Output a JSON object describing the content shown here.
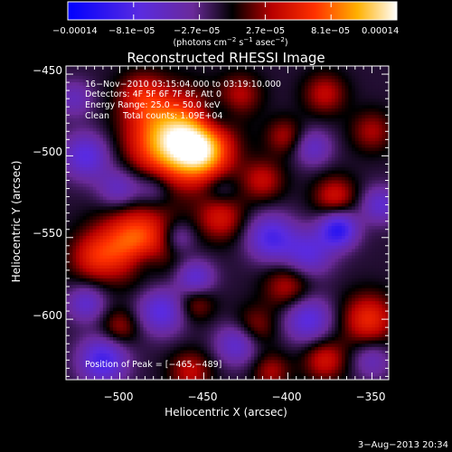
{
  "chart_data": {
    "type": "heatmap",
    "title": "Reconstructed RHESSI Image",
    "xlabel": "Heliocentric X (arcsec)",
    "ylabel": "Heliocentric Y (arcsec)",
    "xlim": [
      -532,
      -340
    ],
    "ylim": [
      -637,
      -445
    ],
    "x_ticks": [
      -500,
      -450,
      -400,
      -350
    ],
    "x_tick_labels": [
      "−500",
      "−450",
      "−400",
      "−350"
    ],
    "y_ticks": [
      -450,
      -500,
      -550,
      -600
    ],
    "y_tick_labels": [
      "−450",
      "−500",
      "−550",
      "−600"
    ],
    "colorbar": {
      "min": -0.00014,
      "max": 0.00014,
      "tick_labels": [
        "−0.00014",
        "−8.1e−05",
        "−2.7e−05",
        "2.7e−05",
        "8.1e−05",
        "0.00014"
      ],
      "unit_prefix": "(photons cm",
      "unit_sup1": "−2",
      "unit_mid": " s",
      "unit_sup2": "−1",
      "unit_mid2": " asec",
      "unit_sup3": "−2",
      "unit_suffix": ")",
      "colormap": "RHESSI blue-purple-black-red-yellow-white"
    },
    "annotations": {
      "time_range": "16−Nov−2010 03:15:04.000 to 03:19:10.000",
      "detectors": "Detectors: 4F 5F 6F 7F 8F, Att 0",
      "energy": "Energy Range: 25.0 − 50.0 keV",
      "method": "Clean     Total counts: 1.09E+04",
      "peak": "Position of Peak = [−465,−489]"
    },
    "peak": {
      "x": -465,
      "y": -489
    },
    "sources": [
      {
        "x": -468,
        "y": -490,
        "sigma": 18,
        "amp": 1.0
      },
      {
        "x": -450,
        "y": -498,
        "sigma": 12,
        "amp": 0.6
      },
      {
        "x": -487,
        "y": -463,
        "sigma": 10,
        "amp": 0.35
      },
      {
        "x": -490,
        "y": -552,
        "sigma": 15,
        "amp": 0.7
      },
      {
        "x": -515,
        "y": -562,
        "sigma": 11,
        "amp": 0.4
      },
      {
        "x": -440,
        "y": -538,
        "sigma": 10,
        "amp": 0.4
      },
      {
        "x": -415,
        "y": -515,
        "sigma": 9,
        "amp": 0.35
      },
      {
        "x": -402,
        "y": -488,
        "sigma": 8,
        "amp": 0.3
      },
      {
        "x": -428,
        "y": -462,
        "sigma": 9,
        "amp": 0.3
      },
      {
        "x": -378,
        "y": -462,
        "sigma": 9,
        "amp": 0.35
      },
      {
        "x": -350,
        "y": -485,
        "sigma": 9,
        "amp": 0.3
      },
      {
        "x": -372,
        "y": -525,
        "sigma": 9,
        "amp": 0.4
      },
      {
        "x": -352,
        "y": -600,
        "sigma": 11,
        "amp": 0.5
      },
      {
        "x": -378,
        "y": -625,
        "sigma": 9,
        "amp": 0.4
      },
      {
        "x": -400,
        "y": -580,
        "sigma": 10,
        "amp": 0.35
      },
      {
        "x": -420,
        "y": -605,
        "sigma": 9,
        "amp": 0.3
      },
      {
        "x": -455,
        "y": -590,
        "sigma": 8,
        "amp": 0.3
      },
      {
        "x": -500,
        "y": -605,
        "sigma": 8,
        "amp": 0.3
      },
      {
        "x": -410,
        "y": -632,
        "sigma": 8,
        "amp": 0.3
      },
      {
        "x": -458,
        "y": -632,
        "sigma": 9,
        "amp": 0.35
      },
      {
        "x": -520,
        "y": -500,
        "sigma": 10,
        "amp": -0.5
      },
      {
        "x": -500,
        "y": -520,
        "sigma": 9,
        "amp": -0.4
      },
      {
        "x": -480,
        "y": -520,
        "sigma": 8,
        "amp": -0.3
      },
      {
        "x": -485,
        "y": -565,
        "sigma": 8,
        "amp": -0.25
      },
      {
        "x": -475,
        "y": -595,
        "sigma": 10,
        "amp": -0.5
      },
      {
        "x": -510,
        "y": -625,
        "sigma": 10,
        "amp": -0.6
      },
      {
        "x": -455,
        "y": -575,
        "sigma": 8,
        "amp": -0.45
      },
      {
        "x": -430,
        "y": -615,
        "sigma": 9,
        "amp": -0.45
      },
      {
        "x": -410,
        "y": -550,
        "sigma": 10,
        "amp": -0.55
      },
      {
        "x": -388,
        "y": -560,
        "sigma": 10,
        "amp": -0.45
      },
      {
        "x": -370,
        "y": -545,
        "sigma": 8,
        "amp": -0.7
      },
      {
        "x": -385,
        "y": -495,
        "sigma": 8,
        "amp": -0.35
      },
      {
        "x": -388,
        "y": -600,
        "sigma": 10,
        "amp": -0.5
      },
      {
        "x": -345,
        "y": -530,
        "sigma": 8,
        "amp": -0.4
      },
      {
        "x": -350,
        "y": -625,
        "sigma": 8,
        "amp": -0.3
      },
      {
        "x": -443,
        "y": -476,
        "sigma": 8,
        "amp": -0.25
      },
      {
        "x": -440,
        "y": -520,
        "sigma": 7,
        "amp": -0.2
      },
      {
        "x": -527,
        "y": -465,
        "sigma": 8,
        "amp": -0.3
      },
      {
        "x": -465,
        "y": -550,
        "sigma": 7,
        "amp": -0.3
      },
      {
        "x": -520,
        "y": -590,
        "sigma": 8,
        "amp": -0.4
      }
    ]
  },
  "footer": {
    "date": "3−Aug−2013 20:34"
  }
}
